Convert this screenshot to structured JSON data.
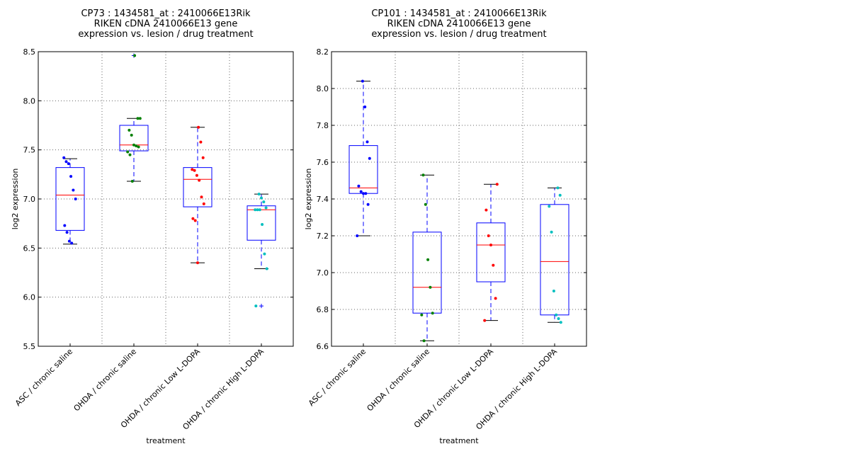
{
  "chart_data": [
    {
      "type": "box",
      "title": [
        "CP73 : 1434581_at : 2410066E13Rik",
        "RIKEN cDNA 2410066E13 gene",
        "expression vs. lesion / drug treatment"
      ],
      "xlabel": "treatment",
      "ylabel": "log2 expression",
      "ylim": [
        5.5,
        8.5
      ],
      "yticks": [
        "5.5",
        "6.0",
        "6.5",
        "7.0",
        "7.5",
        "8.0",
        "8.5"
      ],
      "grid": true,
      "categories": [
        "ASC / chronic saline",
        "OHDA / chronic saline",
        "OHDA / chronic Low L-DOPA",
        "OHDA / chronic High L-DOPA"
      ],
      "point_colors": [
        "#0000ff",
        "#008000",
        "#ff0000",
        "#00bfbf"
      ],
      "boxes": [
        {
          "q1": 6.68,
          "median": 7.04,
          "q3": 7.32,
          "whisker_low": 6.54,
          "whisker_high": 7.41,
          "outliers": [],
          "points": [
            7.42,
            7.38,
            7.36,
            7.23,
            7.09,
            7.0,
            6.73,
            6.66,
            6.57,
            6.55
          ]
        },
        {
          "q1": 7.49,
          "median": 7.55,
          "q3": 7.75,
          "whisker_low": 7.18,
          "whisker_high": 7.82,
          "outliers": [
            8.46
          ],
          "points": [
            7.82,
            7.82,
            7.7,
            7.65,
            7.55,
            7.54,
            7.53,
            7.48,
            7.45,
            7.18,
            8.46
          ]
        },
        {
          "q1": 6.92,
          "median": 7.2,
          "q3": 7.32,
          "whisker_low": 6.35,
          "whisker_high": 7.73,
          "outliers": [],
          "points": [
            7.73,
            7.58,
            7.42,
            7.3,
            7.29,
            7.24,
            7.19,
            7.02,
            6.95,
            6.8,
            6.78,
            6.35
          ]
        },
        {
          "q1": 6.58,
          "median": 6.89,
          "q3": 6.93,
          "whisker_low": 6.29,
          "whisker_high": 7.05,
          "outliers": [
            5.91
          ],
          "points": [
            7.05,
            7.01,
            6.97,
            6.91,
            6.89,
            6.89,
            6.89,
            6.74,
            6.44,
            6.29,
            5.91
          ]
        }
      ]
    },
    {
      "type": "box",
      "title": [
        "CP101 : 1434581_at : 2410066E13Rik",
        "RIKEN cDNA 2410066E13 gene",
        "expression vs. lesion / drug treatment"
      ],
      "xlabel": "treatment",
      "ylabel": "log2 expression",
      "ylim": [
        6.6,
        8.2
      ],
      "yticks": [
        "6.6",
        "6.8",
        "7.0",
        "7.2",
        "7.4",
        "7.6",
        "7.8",
        "8.0",
        "8.2"
      ],
      "grid": true,
      "categories": [
        "ASC / chronic saline",
        "OHDA / chronic saline",
        "OHDA / chronic Low L-DOPA",
        "OHDA / chronic High L-DOPA"
      ],
      "point_colors": [
        "#0000ff",
        "#008000",
        "#ff0000",
        "#00bfbf"
      ],
      "boxes": [
        {
          "q1": 7.43,
          "median": 7.46,
          "q3": 7.69,
          "whisker_low": 7.2,
          "whisker_high": 8.04,
          "outliers": [],
          "points": [
            8.04,
            7.9,
            7.71,
            7.62,
            7.47,
            7.44,
            7.43,
            7.43,
            7.37,
            7.2
          ]
        },
        {
          "q1": 6.78,
          "median": 6.92,
          "q3": 7.22,
          "whisker_low": 6.63,
          "whisker_high": 7.53,
          "outliers": [],
          "points": [
            7.53,
            7.37,
            7.07,
            6.92,
            6.78,
            6.77,
            6.63
          ]
        },
        {
          "q1": 6.95,
          "median": 7.15,
          "q3": 7.27,
          "whisker_low": 6.74,
          "whisker_high": 7.48,
          "outliers": [],
          "points": [
            7.48,
            7.34,
            7.2,
            7.15,
            7.04,
            6.86,
            6.74
          ]
        },
        {
          "q1": 6.77,
          "median": 7.06,
          "q3": 7.37,
          "whisker_low": 6.73,
          "whisker_high": 7.46,
          "outliers": [],
          "points": [
            7.46,
            7.42,
            7.36,
            7.22,
            6.9,
            6.77,
            6.75,
            6.73
          ]
        }
      ]
    }
  ]
}
